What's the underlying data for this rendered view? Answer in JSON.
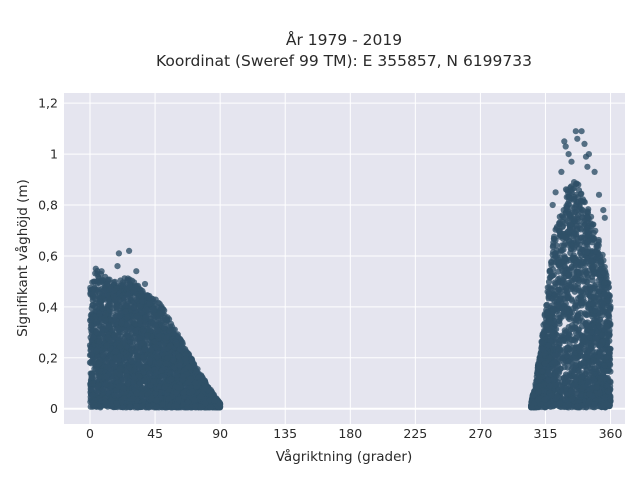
{
  "chart_data": {
    "type": "scatter",
    "title_line1": "År 1979 - 2019",
    "title_line2": "Koordinat (Sweref 99 TM): E 355857, N 6199733",
    "xlabel": "Vågriktning (grader)",
    "ylabel": "Signifikant våghöjd (m)",
    "xlim": [
      -18,
      370
    ],
    "ylim": [
      -0.06,
      1.24
    ],
    "x_ticks": [
      0,
      45,
      90,
      135,
      180,
      225,
      270,
      315,
      360
    ],
    "x_tick_labels": [
      "0",
      "45",
      "90",
      "135",
      "180",
      "225",
      "270",
      "315",
      "360"
    ],
    "y_ticks": [
      0,
      0.2,
      0.4,
      0.6,
      0.8,
      1.0,
      1.2
    ],
    "y_tick_labels": [
      "0",
      "0,2",
      "0,4",
      "0,6",
      "0,8",
      "1",
      "1,2"
    ],
    "grid": true,
    "marker_color": "#2f5068",
    "background_color": "#e5e5ef",
    "clusters": [
      {
        "x_range": [
          0,
          90
        ],
        "envelope": [
          [
            0,
            0.5
          ],
          [
            5,
            0.55
          ],
          [
            10,
            0.52
          ],
          [
            20,
            0.5
          ],
          [
            25,
            0.52
          ],
          [
            30,
            0.5
          ],
          [
            40,
            0.45
          ],
          [
            48,
            0.42
          ],
          [
            55,
            0.35
          ],
          [
            65,
            0.25
          ],
          [
            75,
            0.15
          ],
          [
            85,
            0.06
          ],
          [
            90,
            0.02
          ]
        ]
      },
      {
        "x_range": [
          305,
          360
        ],
        "envelope": [
          [
            305,
            0.02
          ],
          [
            308,
            0.1
          ],
          [
            312,
            0.25
          ],
          [
            315,
            0.4
          ],
          [
            318,
            0.55
          ],
          [
            322,
            0.72
          ],
          [
            326,
            0.8
          ],
          [
            330,
            0.9
          ],
          [
            335,
            0.95
          ],
          [
            340,
            0.85
          ],
          [
            345,
            0.78
          ],
          [
            350,
            0.7
          ],
          [
            355,
            0.6
          ],
          [
            360,
            0.45
          ]
        ]
      }
    ],
    "outliers": [
      {
        "x": 20,
        "y": 0.61
      },
      {
        "x": 27,
        "y": 0.62
      },
      {
        "x": 19,
        "y": 0.56
      },
      {
        "x": 32,
        "y": 0.54
      },
      {
        "x": 38,
        "y": 0.49
      },
      {
        "x": 4,
        "y": 0.55
      },
      {
        "x": 8,
        "y": 0.54
      },
      {
        "x": 328,
        "y": 1.05
      },
      {
        "x": 336,
        "y": 1.09
      },
      {
        "x": 340,
        "y": 1.09
      },
      {
        "x": 337,
        "y": 1.06
      },
      {
        "x": 342,
        "y": 1.04
      },
      {
        "x": 343,
        "y": 0.99
      },
      {
        "x": 344,
        "y": 0.95
      },
      {
        "x": 345,
        "y": 1.0
      },
      {
        "x": 349,
        "y": 0.93
      },
      {
        "x": 331,
        "y": 1.0
      },
      {
        "x": 333,
        "y": 0.97
      },
      {
        "x": 352,
        "y": 0.84
      },
      {
        "x": 355,
        "y": 0.78
      },
      {
        "x": 356,
        "y": 0.75
      },
      {
        "x": 322,
        "y": 0.85
      },
      {
        "x": 320,
        "y": 0.8
      },
      {
        "x": 326,
        "y": 0.93
      },
      {
        "x": 329,
        "y": 1.03
      }
    ]
  }
}
